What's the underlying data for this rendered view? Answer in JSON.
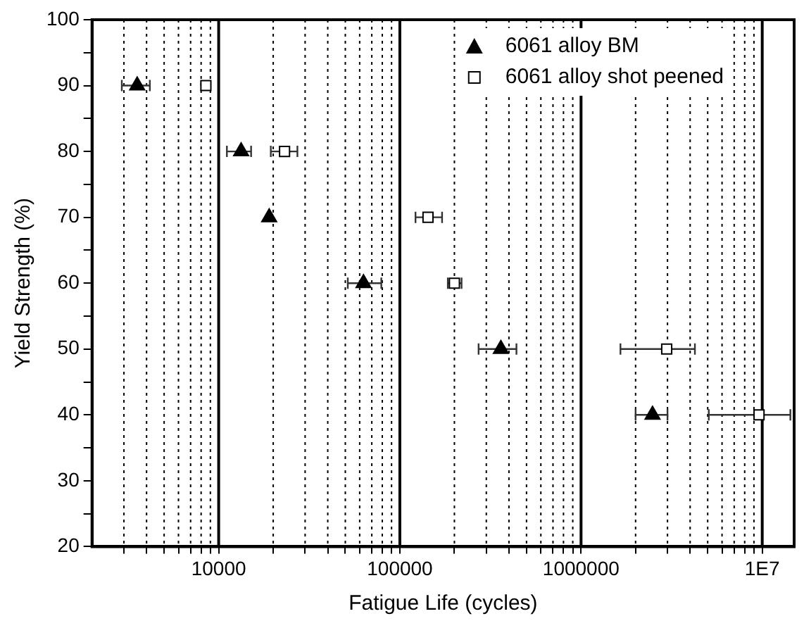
{
  "chart_data": {
    "type": "scatter",
    "xlabel": "Fatigue Life (cycles)",
    "ylabel": "Yield Strength (%)",
    "series": [
      {
        "name": "6061 alloy BM",
        "color": "#000000",
        "marker": "triangle",
        "x": [
          3550,
          13300,
          19000,
          63000,
          361000,
          2480000
        ],
        "values": [
          90,
          80,
          70,
          60,
          50,
          40
        ],
        "xerrors": [
          [
            2920,
            4170
          ],
          [
            11100,
            15100
          ],
          null,
          [
            51600,
            79000
          ],
          [
            272000,
            440000
          ],
          [
            2000000,
            3000000
          ]
        ]
      },
      {
        "name": "6061 alloy shot peened",
        "color": "#000000",
        "marker": "square",
        "x": [
          8500,
          23100,
          143000,
          200000,
          2970000,
          9600000
        ],
        "values": [
          90,
          80,
          70,
          60,
          50,
          40
        ],
        "xerrors": [
          null,
          [
            19400,
            27200
          ],
          [
            122000,
            171000
          ],
          [
            184000,
            219000
          ],
          [
            1650000,
            4250000
          ],
          [
            5070000,
            14300000
          ]
        ]
      }
    ],
    "log": "x",
    "xlim": [
      2000,
      15000000
    ],
    "xticks": [
      {
        "value": 3000,
        "label": null
      },
      {
        "value": 4000,
        "label": null
      },
      {
        "value": 5000,
        "label": null
      },
      {
        "value": 6000,
        "label": null
      },
      {
        "value": 7000,
        "label": null
      },
      {
        "value": 8000,
        "label": null
      },
      {
        "value": 9000,
        "label": null
      },
      10000,
      {
        "value": 20000,
        "label": null
      },
      {
        "value": 30000,
        "label": null
      },
      {
        "value": 40000,
        "label": null
      },
      {
        "value": 50000,
        "label": null
      },
      {
        "value": 60000,
        "label": null
      },
      {
        "value": 70000,
        "label": null
      },
      {
        "value": 80000,
        "label": null
      },
      {
        "value": 90000,
        "label": null
      },
      100000,
      {
        "value": 200000,
        "label": null
      },
      {
        "value": 300000,
        "label": null
      },
      {
        "value": 400000,
        "label": null
      },
      {
        "value": 500000,
        "label": null
      },
      {
        "value": 600000,
        "label": null
      },
      {
        "value": 700000,
        "label": null
      },
      {
        "value": 800000,
        "label": null
      },
      {
        "value": 900000,
        "label": null
      },
      1000000,
      {
        "value": 2000000,
        "label": null
      },
      {
        "value": 3000000,
        "label": null
      },
      {
        "value": 4000000,
        "label": null
      },
      {
        "value": 5000000,
        "label": null
      },
      {
        "value": 6000000,
        "label": null
      },
      {
        "value": 7000000,
        "label": null
      },
      {
        "value": 8000000,
        "label": null
      },
      {
        "value": 9000000,
        "label": null
      },
      {
        "value": 10000000,
        "label": "1E7"
      }
    ],
    "ylim": [
      20,
      100
    ],
    "yticks": [
      20,
      {
        "value": 25,
        "label": null
      },
      30,
      {
        "value": 35,
        "label": null
      },
      40,
      {
        "value": 45,
        "label": null
      },
      50,
      {
        "value": 55,
        "label": null
      },
      60,
      {
        "value": 65,
        "label": null
      },
      70,
      {
        "value": 75,
        "label": null
      },
      80,
      {
        "value": 85,
        "label": null
      },
      90,
      {
        "value": 95,
        "label": null
      },
      100
    ],
    "grid": "x",
    "legend": "top right"
  }
}
